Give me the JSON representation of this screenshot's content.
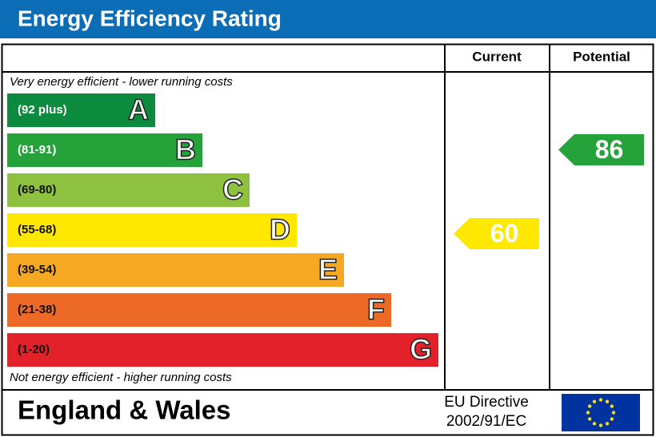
{
  "header": {
    "title": "Energy Efficiency Rating"
  },
  "columns": {
    "current": "Current",
    "potential": "Potential"
  },
  "top_note": "Very energy efficient - lower running costs",
  "bottom_note": "Not energy efficient - higher running costs",
  "bands": [
    {
      "range": "(92 plus)",
      "letter": "A",
      "color": "#0c8a3e"
    },
    {
      "range": "(81-91)",
      "letter": "B",
      "color": "#25a23a"
    },
    {
      "range": "(69-80)",
      "letter": "C",
      "color": "#8dc13f"
    },
    {
      "range": "(55-68)",
      "letter": "D",
      "color": "#ffe800"
    },
    {
      "range": "(39-54)",
      "letter": "E",
      "color": "#f6a822"
    },
    {
      "range": "(21-38)",
      "letter": "F",
      "color": "#ec6a25"
    },
    {
      "range": "(1-20)",
      "letter": "G",
      "color": "#e2212a"
    }
  ],
  "current": {
    "value": 60,
    "band": 3
  },
  "potential": {
    "value": 86,
    "band": 1
  },
  "footer": {
    "region": "England & Wales",
    "directive_line1": "EU Directive",
    "directive_line2": "2002/91/EC"
  }
}
